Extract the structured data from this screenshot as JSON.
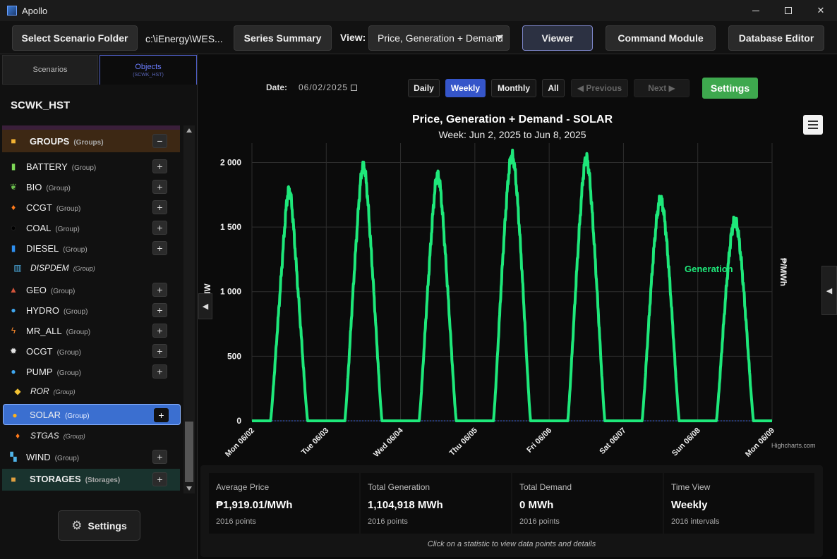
{
  "window": {
    "title": "Apollo"
  },
  "toolbar": {
    "select_folder": "Select Scenario Folder",
    "folder_path": "c:\\iEnergy\\WES...",
    "series_summary": "Series Summary",
    "view_label": "View:",
    "view_value": "Price, Generation + Demand",
    "viewer": "Viewer",
    "command_module": "Command Module",
    "database_editor": "Database Editor"
  },
  "sidebar": {
    "tabs": {
      "scenarios": "Scenarios",
      "objects": "Objects",
      "objects_sub": "(SCWK_HST)"
    },
    "scenario_name": "SCWK_HST",
    "groups_header": {
      "label": "GROUPS",
      "tag": "(Groups)",
      "toggle": "−"
    },
    "items": [
      {
        "label": "BATTERY",
        "tag": "(Group)",
        "icon": "battery-icon",
        "plus": "+"
      },
      {
        "label": "BIO",
        "tag": "(Group)",
        "icon": "leaf-icon",
        "plus": "+"
      },
      {
        "label": "CCGT",
        "tag": "(Group)",
        "icon": "flame-icon",
        "plus": "+"
      },
      {
        "label": "COAL",
        "tag": "(Group)",
        "icon": "coal-icon",
        "plus": "+"
      },
      {
        "label": "DIESEL",
        "tag": "(Group)",
        "icon": "diesel-icon",
        "plus": "+"
      },
      {
        "label": "DISPDEM",
        "tag": "(Group)",
        "icon": "chart-icon"
      },
      {
        "label": "GEO",
        "tag": "(Group)",
        "icon": "geo-icon",
        "plus": "+"
      },
      {
        "label": "HYDRO",
        "tag": "(Group)",
        "icon": "droplet-icon",
        "plus": "+"
      },
      {
        "label": "MR_ALL",
        "tag": "(Group)",
        "icon": "bolt-icon",
        "plus": "+"
      },
      {
        "label": "OCGT",
        "tag": "(Group)",
        "icon": "ocgt-icon",
        "plus": "+"
      },
      {
        "label": "PUMP",
        "tag": "(Group)",
        "icon": "droplet-icon",
        "plus": "+"
      },
      {
        "label": "ROR",
        "tag": "(Group)",
        "icon": "tag-icon"
      },
      {
        "label": "SOLAR",
        "tag": "(Group)",
        "icon": "sun-icon",
        "plus": "+"
      },
      {
        "label": "STGAS",
        "tag": "(Group)",
        "icon": "flame-icon"
      },
      {
        "label": "WIND",
        "tag": "(Group)",
        "icon": "wind-icon",
        "plus": "+"
      }
    ],
    "storages_header": {
      "label": "STORAGES",
      "tag": "(Storages)",
      "plus": "+"
    },
    "settings": "Settings"
  },
  "controls": {
    "date_label": "Date:",
    "date_value": "06/02/2025",
    "daily": "Daily",
    "weekly": "Weekly",
    "monthly": "Monthly",
    "all": "All",
    "previous": "◀ Previous",
    "next": "Next ▶",
    "settings": "Settings"
  },
  "chart_data": {
    "type": "line",
    "title": "Price, Generation + Demand - SOLAR",
    "subtitle": "Week: Jun 2, 2025 to Jun 8, 2025",
    "ylabel": "MW",
    "y2label": "₱/MWh",
    "ylim": [
      0,
      2150
    ],
    "yticks": [
      "0",
      "500",
      "1 000",
      "1 500",
      "2 000"
    ],
    "yticks_values": [
      0,
      500,
      1000,
      1500,
      2000
    ],
    "xticks": [
      "Mon 06/02",
      "Tue 06/03",
      "Wed 06/04",
      "Thu 06/05",
      "Fri 06/06",
      "Sat 06/07",
      "Sun 06/08",
      "Mon 06/09"
    ],
    "xlim_days": [
      0,
      7
    ],
    "daily_peaks_mw": [
      1780,
      1970,
      1900,
      2050,
      2030,
      1710,
      1550
    ],
    "daily_midday_mw": [
      1450,
      1700,
      1650,
      1880,
      1800,
      1600,
      1450
    ],
    "series": [
      {
        "name": "Demand",
        "color": "#888888",
        "hidden": true
      },
      {
        "name": "Generation",
        "color": "#1ee87a",
        "hidden": false
      },
      {
        "name": "Price",
        "color": "#888888",
        "hidden": true
      }
    ],
    "annotation": "Generation",
    "legend_position": "bottom",
    "grid": true,
    "credits": "Highcharts.com"
  },
  "stats": [
    {
      "label": "Average Price",
      "value": "₱1,919.01/MWh",
      "sub": "2016 points"
    },
    {
      "label": "Total Generation",
      "value": "1,104,918 MWh",
      "sub": "2016 points"
    },
    {
      "label": "Total Demand",
      "value": "0 MWh",
      "sub": "2016 points"
    },
    {
      "label": "Time View",
      "value": "Weekly",
      "sub": "2016 intervals"
    }
  ],
  "stats_hint": "Click on a statistic to view data points and details"
}
